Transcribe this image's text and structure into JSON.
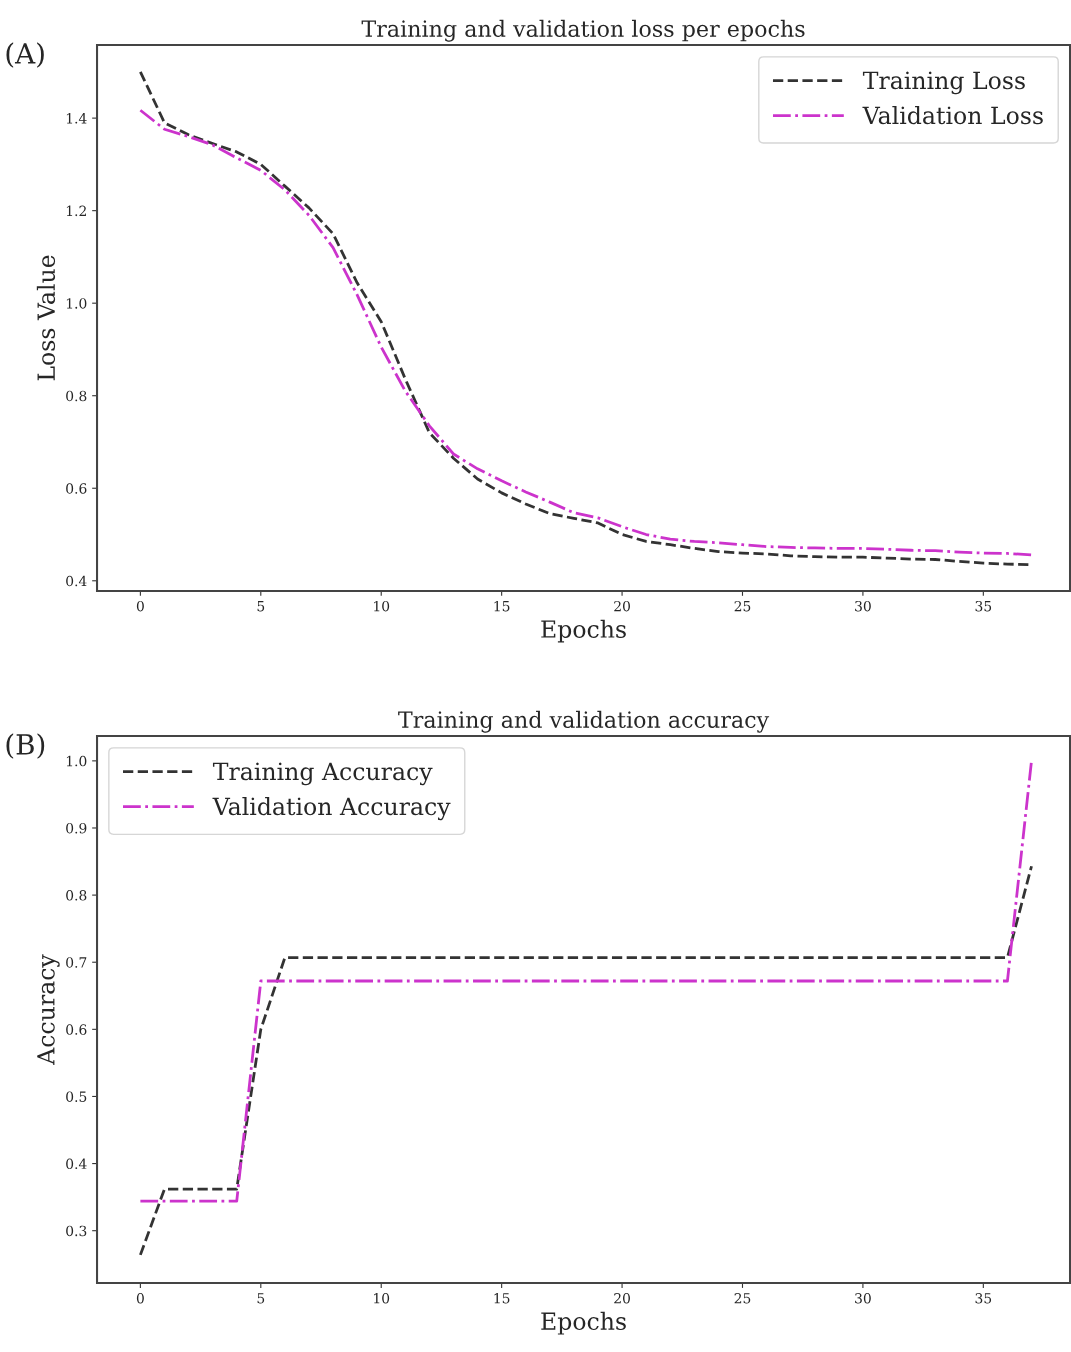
{
  "chart_data": [
    {
      "type": "line",
      "title": "Training and validation loss per epochs",
      "xlabel": "Epochs",
      "ylabel": "Loss Value",
      "annotations": [
        "(A)"
      ],
      "legend": "top right",
      "x": [
        0,
        1,
        2,
        3,
        4,
        5,
        6,
        7,
        8,
        9,
        10,
        11,
        12,
        13,
        14,
        15,
        16,
        17,
        18,
        19,
        20,
        21,
        22,
        23,
        24,
        25,
        26,
        27,
        28,
        29,
        30,
        31,
        32,
        33,
        34,
        35,
        36,
        37
      ],
      "xlim": [
        -1.8,
        38.6
      ],
      "xticks": [
        0,
        5,
        10,
        15,
        20,
        25,
        30,
        35
      ],
      "ylim": [
        0.378,
        1.558
      ],
      "yticks": [
        0.4,
        0.6,
        0.8,
        {
          "value": 1.0,
          "label": "1.0"
        },
        1.2,
        1.4
      ],
      "series": [
        {
          "name": "Training Loss",
          "color": "#333333",
          "line_style": "dashed",
          "values": [
            1.5,
            1.39,
            1.364,
            1.345,
            1.327,
            1.3,
            1.253,
            1.206,
            1.15,
            1.044,
            0.96,
            0.836,
            0.72,
            0.665,
            0.62,
            0.59,
            0.566,
            0.545,
            0.535,
            0.525,
            0.5,
            0.485,
            0.478,
            0.47,
            0.463,
            0.46,
            0.458,
            0.454,
            0.452,
            0.451,
            0.451,
            0.449,
            0.447,
            0.446,
            0.442,
            0.438,
            0.436,
            0.435
          ]
        },
        {
          "name": "Validation Loss",
          "color": "#cc33cc",
          "line_style": "dashdot",
          "values": [
            1.417,
            1.376,
            1.36,
            1.342,
            1.314,
            1.287,
            1.245,
            1.19,
            1.12,
            1.018,
            0.905,
            0.81,
            0.735,
            0.674,
            0.642,
            0.616,
            0.592,
            0.57,
            0.547,
            0.536,
            0.517,
            0.5,
            0.49,
            0.485,
            0.482,
            0.478,
            0.474,
            0.472,
            0.471,
            0.47,
            0.47,
            0.468,
            0.466,
            0.465,
            0.462,
            0.46,
            0.459,
            0.456
          ]
        }
      ]
    },
    {
      "type": "line",
      "title": "Training and validation accuracy",
      "xlabel": "Epochs",
      "ylabel": "Accuracy",
      "annotations": [
        "(B)"
      ],
      "legend": "top left",
      "x": [
        0,
        1,
        2,
        3,
        4,
        5,
        6,
        7,
        8,
        9,
        10,
        11,
        12,
        13,
        14,
        15,
        16,
        17,
        18,
        19,
        20,
        21,
        22,
        23,
        24,
        25,
        26,
        27,
        28,
        29,
        30,
        31,
        32,
        33,
        34,
        35,
        36,
        37
      ],
      "xlim": [
        -1.8,
        38.6
      ],
      "xticks": [
        0,
        5,
        10,
        15,
        20,
        25,
        30,
        35
      ],
      "ylim": [
        0.222,
        1.037
      ],
      "yticks": [
        0.3,
        0.4,
        0.5,
        0.6,
        0.7,
        0.8,
        0.9,
        {
          "value": 1.0,
          "label": "1.0"
        }
      ],
      "series": [
        {
          "name": "Training Accuracy",
          "color": "#333333",
          "line_style": "dashed",
          "values": [
            0.264,
            0.362,
            0.362,
            0.362,
            0.362,
            0.6,
            0.707,
            0.707,
            0.707,
            0.707,
            0.707,
            0.707,
            0.707,
            0.707,
            0.707,
            0.707,
            0.707,
            0.707,
            0.707,
            0.707,
            0.707,
            0.707,
            0.707,
            0.707,
            0.707,
            0.707,
            0.707,
            0.707,
            0.707,
            0.707,
            0.707,
            0.707,
            0.707,
            0.707,
            0.707,
            0.707,
            0.707,
            0.843
          ]
        },
        {
          "name": "Validation Accuracy",
          "color": "#cc33cc",
          "line_style": "dashdot",
          "values": [
            0.344,
            0.344,
            0.344,
            0.344,
            0.344,
            0.672,
            0.672,
            0.672,
            0.672,
            0.672,
            0.672,
            0.672,
            0.672,
            0.672,
            0.672,
            0.672,
            0.672,
            0.672,
            0.672,
            0.672,
            0.672,
            0.672,
            0.672,
            0.672,
            0.672,
            0.672,
            0.672,
            0.672,
            0.672,
            0.672,
            0.672,
            0.672,
            0.672,
            0.672,
            0.672,
            0.672,
            0.672,
            1.0
          ]
        }
      ]
    }
  ]
}
